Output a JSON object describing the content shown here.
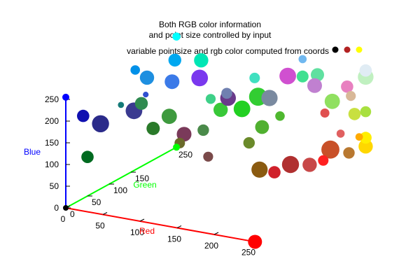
{
  "chart_data": {
    "type": "scatter",
    "dimensions": "3d",
    "title_lines": [
      "Both RGB color information",
      "and point size controlled by input"
    ],
    "legend": {
      "label": "variable pointsize and rgb color computed from coords",
      "marker_colors": [
        "#000000",
        "#b22222",
        "#ffff00"
      ],
      "placement": "top-right"
    },
    "axes": {
      "x": {
        "label": "Red",
        "color": "#ff0000",
        "range": [
          0,
          255
        ],
        "ticks": [
          0,
          50,
          100,
          150,
          200,
          250
        ]
      },
      "y": {
        "label": "Green",
        "color": "#00ff00",
        "range": [
          0,
          255
        ],
        "ticks": [
          0,
          50,
          100,
          150,
          250
        ]
      },
      "z": {
        "label": "Blue",
        "color": "#0000ff",
        "range": [
          0,
          255
        ],
        "ticks": [
          0,
          50,
          100,
          150,
          200,
          250
        ]
      }
    },
    "axis_endpoints": [
      {
        "r": 0,
        "g": 0,
        "b": 0,
        "color": "#000000"
      },
      {
        "r": 255,
        "g": 0,
        "b": 0,
        "color": "#ff0000"
      },
      {
        "r": 0,
        "g": 255,
        "b": 0,
        "color": "#00ff00"
      },
      {
        "r": 0,
        "g": 0,
        "b": 255,
        "color": "#0000ff"
      }
    ],
    "points": [
      {
        "r": 0,
        "g": 255,
        "b": 255,
        "color": "#00ffff",
        "size": 1.7
      },
      {
        "r": 0,
        "g": 160,
        "b": 230,
        "color": "#0090e8",
        "size": 2.0
      },
      {
        "r": 10,
        "g": 170,
        "b": 210,
        "color": "#1e8fe0",
        "size": 3.0
      },
      {
        "r": 30,
        "g": 200,
        "b": 240,
        "color": "#00a8f0",
        "size": 2.7
      },
      {
        "r": 35,
        "g": 185,
        "b": 200,
        "color": "#3b7ae8",
        "size": 3.1
      },
      {
        "r": 45,
        "g": 235,
        "b": 225,
        "color": "#00e6b5",
        "size": 3.0
      },
      {
        "r": 40,
        "g": 240,
        "b": 180,
        "color": "#7a38ee",
        "size": 3.5
      },
      {
        "r": 20,
        "g": 150,
        "b": 185,
        "color": "#3050d0",
        "size": 1.2
      },
      {
        "r": 0,
        "g": 40,
        "b": 190,
        "color": "#1010b0",
        "size": 2.6
      },
      {
        "r": 10,
        "g": 110,
        "b": 180,
        "color": "#147a78",
        "size": 1.3
      },
      {
        "r": 20,
        "g": 140,
        "b": 170,
        "color": "#2f8a50",
        "size": 2.7
      },
      {
        "r": 0,
        "g": 80,
        "b": 150,
        "color": "#2b2b8a",
        "size": 3.6
      },
      {
        "r": 10,
        "g": 140,
        "b": 150,
        "color": "#3a3a90",
        "size": 3.5
      },
      {
        "r": 0,
        "g": 50,
        "b": 90,
        "color": "#006a20",
        "size": 2.6
      },
      {
        "r": 30,
        "g": 150,
        "b": 110,
        "color": "#2a7a2a",
        "size": 2.8
      },
      {
        "r": 40,
        "g": 170,
        "b": 130,
        "color": "#3e9a3e",
        "size": 3.2
      },
      {
        "r": 60,
        "g": 170,
        "b": 95,
        "color": "#7a3a5a",
        "size": 3.1
      },
      {
        "r": 60,
        "g": 160,
        "b": 80,
        "color": "#6a6a2a",
        "size": 2.2
      },
      {
        "r": 90,
        "g": 220,
        "b": 160,
        "color": "#6a3a8a",
        "size": 3.3
      },
      {
        "r": 80,
        "g": 220,
        "b": 130,
        "color": "#38c838",
        "size": 3.0
      },
      {
        "r": 110,
        "g": 255,
        "b": 150,
        "color": "#32cd32",
        "size": 3.8
      },
      {
        "r": 100,
        "g": 235,
        "b": 130,
        "color": "#22d022",
        "size": 3.5
      },
      {
        "r": 80,
        "g": 180,
        "b": 105,
        "color": "#4a8a4a",
        "size": 2.4
      },
      {
        "r": 110,
        "g": 140,
        "b": 75,
        "color": "#7a4a4a",
        "size": 2.1
      },
      {
        "r": 130,
        "g": 230,
        "b": 100,
        "color": "#50b030",
        "size": 2.9
      },
      {
        "r": 130,
        "g": 200,
        "b": 80,
        "color": "#6a8a2a",
        "size": 2.4
      },
      {
        "r": 150,
        "g": 190,
        "b": 30,
        "color": "#8a5a10",
        "size": 3.4
      },
      {
        "r": 170,
        "g": 190,
        "b": 30,
        "color": "#d0202a",
        "size": 2.6
      },
      {
        "r": 180,
        "g": 210,
        "b": 40,
        "color": "#b03030",
        "size": 3.6
      },
      {
        "r": 200,
        "g": 220,
        "b": 40,
        "color": "#c84848",
        "size": 3.0
      },
      {
        "r": 230,
        "g": 200,
        "b": 70,
        "color": "#ff2020",
        "size": 2.2
      },
      {
        "r": 225,
        "g": 225,
        "b": 80,
        "color": "#c85028",
        "size": 3.8
      },
      {
        "r": 250,
        "g": 225,
        "b": 80,
        "color": "#b87830",
        "size": 2.4
      },
      {
        "r": 255,
        "g": 240,
        "b": 110,
        "color": "#ffaa00",
        "size": 1.6
      },
      {
        "r": 255,
        "g": 255,
        "b": 80,
        "color": "#ffd700",
        "size": 3.0
      },
      {
        "r": 255,
        "g": 255,
        "b": 100,
        "color": "#ffee00",
        "size": 2.5
      },
      {
        "r": 200,
        "g": 255,
        "b": 140,
        "color": "#e05050",
        "size": 1.9
      },
      {
        "r": 230,
        "g": 240,
        "b": 110,
        "color": "#e06060",
        "size": 1.7
      },
      {
        "r": 240,
        "g": 255,
        "b": 150,
        "color": "#c8e040",
        "size": 2.6
      },
      {
        "r": 255,
        "g": 255,
        "b": 160,
        "color": "#a8e040",
        "size": 2.3
      },
      {
        "r": 210,
        "g": 255,
        "b": 170,
        "color": "#90e060",
        "size": 3.2
      },
      {
        "r": 160,
        "g": 220,
        "b": 140,
        "color": "#4fb82f",
        "size": 2.0
      },
      {
        "r": 140,
        "g": 230,
        "b": 170,
        "color": "#7a8aa0",
        "size": 3.4
      },
      {
        "r": 150,
        "g": 255,
        "b": 210,
        "color": "#d050d0",
        "size": 3.5
      },
      {
        "r": 170,
        "g": 255,
        "b": 215,
        "color": "#40e090",
        "size": 2.5
      },
      {
        "r": 190,
        "g": 255,
        "b": 225,
        "color": "#60e0a0",
        "size": 2.8
      },
      {
        "r": 195,
        "g": 240,
        "b": 210,
        "color": "#c080d0",
        "size": 3.1
      },
      {
        "r": 230,
        "g": 255,
        "b": 210,
        "color": "#e880c0",
        "size": 2.6
      },
      {
        "r": 235,
        "g": 255,
        "b": 190,
        "color": "#d8b898",
        "size": 2.1
      },
      {
        "r": 255,
        "g": 255,
        "b": 240,
        "color": "#c0f0c0",
        "size": 3.3
      },
      {
        "r": 255,
        "g": 255,
        "b": 255,
        "color": "#e0ecf4",
        "size": 2.6
      },
      {
        "r": 170,
        "g": 255,
        "b": 255,
        "color": "#70b8f0",
        "size": 1.7
      },
      {
        "r": 120,
        "g": 230,
        "b": 210,
        "color": "#40e0c0",
        "size": 2.2
      },
      {
        "r": 100,
        "g": 200,
        "b": 185,
        "color": "#7080b0",
        "size": 2.3
      },
      {
        "r": 90,
        "g": 180,
        "b": 180,
        "color": "#3ed088",
        "size": 2.1
      }
    ]
  }
}
